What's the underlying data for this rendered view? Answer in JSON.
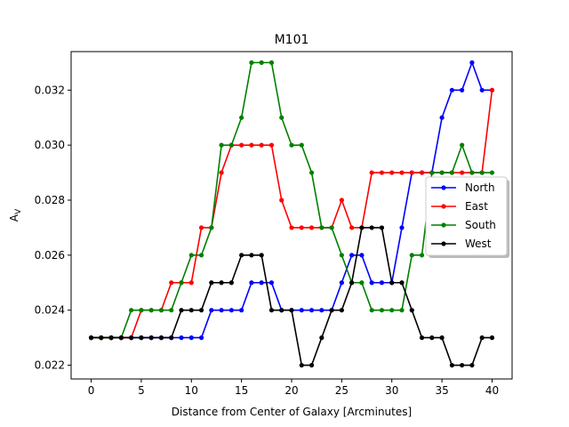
{
  "chart_data": {
    "type": "line",
    "title": "M101",
    "xlabel": "Distance from Center of Galaxy [Arcminutes]",
    "ylabel": "A",
    "ylabel_subscript": "V",
    "xlim": [
      -2,
      42
    ],
    "ylim": [
      0.0215,
      0.0334
    ],
    "xticks": [
      0,
      5,
      10,
      15,
      20,
      25,
      30,
      35,
      40
    ],
    "yticks": [
      0.022,
      0.024,
      0.026,
      0.028,
      0.03,
      0.032
    ],
    "ytick_labels": [
      "0.022",
      "0.024",
      "0.026",
      "0.028",
      "0.030",
      "0.032"
    ],
    "legend_position": "center-right",
    "grid": false,
    "x": [
      0,
      1,
      2,
      3,
      4,
      5,
      6,
      7,
      8,
      9,
      10,
      11,
      12,
      13,
      14,
      15,
      16,
      17,
      18,
      19,
      20,
      21,
      22,
      23,
      24,
      25,
      26,
      27,
      28,
      29,
      30,
      31,
      32,
      33,
      34,
      35,
      36,
      37,
      38,
      39,
      40
    ],
    "series": [
      {
        "name": "North",
        "color": "#0000ff",
        "values": [
          0.023,
          0.023,
          0.023,
          0.023,
          0.023,
          0.023,
          0.023,
          0.023,
          0.023,
          0.023,
          0.023,
          0.023,
          0.024,
          0.024,
          0.024,
          0.024,
          0.025,
          0.025,
          0.025,
          0.024,
          0.024,
          0.024,
          0.024,
          0.024,
          0.024,
          0.025,
          0.026,
          0.026,
          0.025,
          0.025,
          0.025,
          0.027,
          0.029,
          0.029,
          0.029,
          0.031,
          0.032,
          0.032,
          0.033,
          0.032,
          0.032
        ]
      },
      {
        "name": "East",
        "color": "#ff0000",
        "values": [
          0.023,
          0.023,
          0.023,
          0.023,
          0.023,
          0.024,
          0.024,
          0.024,
          0.025,
          0.025,
          0.025,
          0.027,
          0.027,
          0.029,
          0.03,
          0.03,
          0.03,
          0.03,
          0.03,
          0.028,
          0.027,
          0.027,
          0.027,
          0.027,
          0.027,
          0.028,
          0.027,
          0.027,
          0.029,
          0.029,
          0.029,
          0.029,
          0.029,
          0.029,
          0.029,
          0.029,
          0.029,
          0.029,
          0.029,
          0.029,
          0.032
        ]
      },
      {
        "name": "South",
        "color": "#008000",
        "values": [
          0.023,
          0.023,
          0.023,
          0.023,
          0.024,
          0.024,
          0.024,
          0.024,
          0.024,
          0.025,
          0.026,
          0.026,
          0.027,
          0.03,
          0.03,
          0.031,
          0.033,
          0.033,
          0.033,
          0.031,
          0.03,
          0.03,
          0.029,
          0.027,
          0.027,
          0.026,
          0.025,
          0.025,
          0.024,
          0.024,
          0.024,
          0.024,
          0.026,
          0.026,
          0.029,
          0.029,
          0.029,
          0.03,
          0.029,
          0.029,
          0.029
        ]
      },
      {
        "name": "West",
        "color": "#000000",
        "values": [
          0.023,
          0.023,
          0.023,
          0.023,
          0.023,
          0.023,
          0.023,
          0.023,
          0.023,
          0.024,
          0.024,
          0.024,
          0.025,
          0.025,
          0.025,
          0.026,
          0.026,
          0.026,
          0.024,
          0.024,
          0.024,
          0.022,
          0.022,
          0.023,
          0.024,
          0.024,
          0.025,
          0.027,
          0.027,
          0.027,
          0.025,
          0.025,
          0.024,
          0.023,
          0.023,
          0.023,
          0.022,
          0.022,
          0.022,
          0.023,
          0.023
        ]
      }
    ]
  }
}
